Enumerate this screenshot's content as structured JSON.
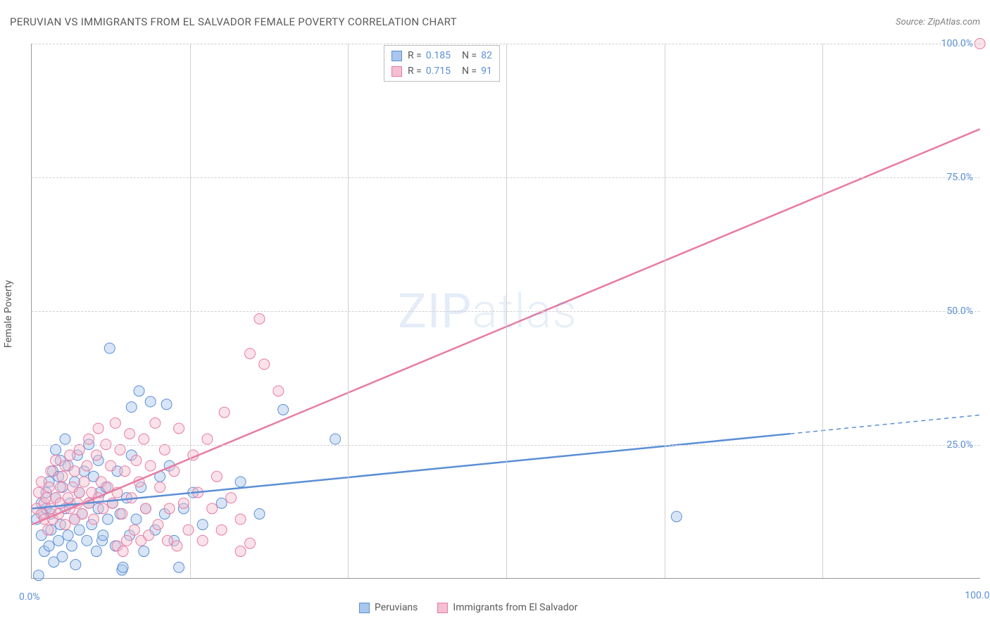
{
  "title": "PERUVIAN VS IMMIGRANTS FROM EL SALVADOR FEMALE POVERTY CORRELATION CHART",
  "source_label": "Source: ",
  "source_value": "ZipAtlas.com",
  "ylabel": "Female Poverty",
  "watermark_main": "ZIP",
  "watermark_sub": "atlas",
  "chart": {
    "type": "scatter",
    "xlim": [
      0,
      100
    ],
    "ylim": [
      0,
      100
    ],
    "xticks": [
      0,
      100
    ],
    "yticks": [
      0,
      25,
      50,
      75,
      100
    ],
    "xtick_labels": [
      "0.0%",
      "100.0%"
    ],
    "ytick_labels": [
      "0.0%",
      "25.0%",
      "50.0%",
      "75.0%",
      "100.0%"
    ],
    "vgrid_at": [
      16.67,
      33.33,
      50,
      66.67,
      83.33
    ],
    "background_color": "#ffffff",
    "grid_color": "#d0d0d0",
    "axis_color": "#999999",
    "marker_radius": 7.5,
    "marker_opacity": 0.45,
    "series": [
      {
        "name": "Peruvians",
        "color_fill": "#a9c6ec",
        "color_stroke": "#5b8fd6",
        "r": "0.185",
        "n": "82",
        "regression": {
          "x1": 0,
          "y1": 13,
          "x2": 80,
          "y2": 27,
          "extrap_x2": 100,
          "extrap_y2": 30.5
        },
        "points": [
          [
            0.5,
            11
          ],
          [
            0.7,
            0.5
          ],
          [
            1,
            14
          ],
          [
            1,
            8
          ],
          [
            1.2,
            12
          ],
          [
            1.3,
            5
          ],
          [
            1.5,
            13
          ],
          [
            1.5,
            16
          ],
          [
            1.8,
            6
          ],
          [
            1.8,
            18
          ],
          [
            2,
            12
          ],
          [
            2,
            9
          ],
          [
            2.2,
            20
          ],
          [
            2.3,
            3
          ],
          [
            2.5,
            15
          ],
          [
            2.5,
            24
          ],
          [
            2.8,
            7
          ],
          [
            2.8,
            19
          ],
          [
            3,
            10
          ],
          [
            3,
            22
          ],
          [
            3.2,
            4
          ],
          [
            3.2,
            17
          ],
          [
            3.5,
            13
          ],
          [
            3.5,
            26
          ],
          [
            3.8,
            8
          ],
          [
            3.8,
            21
          ],
          [
            4,
            14
          ],
          [
            4.2,
            6
          ],
          [
            4.5,
            18
          ],
          [
            4.5,
            11
          ],
          [
            4.6,
            2.5
          ],
          [
            4.8,
            23
          ],
          [
            5,
            9
          ],
          [
            5,
            16
          ],
          [
            5.3,
            12
          ],
          [
            5.5,
            20
          ],
          [
            5.8,
            7
          ],
          [
            6,
            14
          ],
          [
            6,
            25
          ],
          [
            6.3,
            10
          ],
          [
            6.5,
            19
          ],
          [
            6.8,
            5
          ],
          [
            7,
            13
          ],
          [
            7,
            22
          ],
          [
            7.2,
            16
          ],
          [
            7.4,
            7
          ],
          [
            7.5,
            8
          ],
          [
            7.8,
            17
          ],
          [
            8,
            11
          ],
          [
            8.2,
            43
          ],
          [
            8.5,
            14
          ],
          [
            8.8,
            6
          ],
          [
            9,
            20
          ],
          [
            9.3,
            12
          ],
          [
            9.5,
            1.5
          ],
          [
            9.6,
            2
          ],
          [
            10,
            15
          ],
          [
            10.3,
            8
          ],
          [
            10.5,
            23
          ],
          [
            10.5,
            32
          ],
          [
            11,
            11
          ],
          [
            11.3,
            35
          ],
          [
            11.5,
            17
          ],
          [
            11.8,
            5
          ],
          [
            12,
            13
          ],
          [
            12.5,
            33
          ],
          [
            13,
            9
          ],
          [
            13.5,
            19
          ],
          [
            14,
            12
          ],
          [
            14.2,
            32.5
          ],
          [
            14.5,
            21
          ],
          [
            15,
            7
          ],
          [
            15.5,
            2
          ],
          [
            16,
            13
          ],
          [
            17,
            16
          ],
          [
            18,
            10
          ],
          [
            20,
            14
          ],
          [
            22,
            18
          ],
          [
            24,
            12
          ],
          [
            26.5,
            31.5
          ],
          [
            32,
            26
          ],
          [
            68,
            11.5
          ]
        ]
      },
      {
        "name": "Immigrants from El Salvador",
        "color_fill": "#f4bfce",
        "color_stroke": "#e87ba2",
        "r": "0.715",
        "n": "91",
        "regression": {
          "x1": 0,
          "y1": 10,
          "x2": 100,
          "y2": 84
        },
        "points": [
          [
            0.5,
            13
          ],
          [
            0.7,
            16
          ],
          [
            1,
            12
          ],
          [
            1,
            18
          ],
          [
            1.3,
            14
          ],
          [
            1.3,
            11
          ],
          [
            1.5,
            15
          ],
          [
            1.7,
            9
          ],
          [
            1.8,
            17
          ],
          [
            2,
            13
          ],
          [
            2,
            20
          ],
          [
            2.2,
            11
          ],
          [
            2.5,
            15
          ],
          [
            2.5,
            22
          ],
          [
            2.8,
            12
          ],
          [
            3,
            17
          ],
          [
            3,
            14
          ],
          [
            3.2,
            19
          ],
          [
            3.5,
            10
          ],
          [
            3.5,
            21
          ],
          [
            3.8,
            15
          ],
          [
            4,
            13
          ],
          [
            4,
            23
          ],
          [
            4.3,
            17
          ],
          [
            4.5,
            11
          ],
          [
            4.5,
            20
          ],
          [
            4.8,
            14
          ],
          [
            5,
            16
          ],
          [
            5,
            24
          ],
          [
            5.3,
            12
          ],
          [
            5.5,
            18
          ],
          [
            5.8,
            21
          ],
          [
            6,
            14
          ],
          [
            6,
            26
          ],
          [
            6.3,
            16
          ],
          [
            6.5,
            11
          ],
          [
            6.8,
            23
          ],
          [
            7,
            15
          ],
          [
            7,
            28
          ],
          [
            7.3,
            18
          ],
          [
            7.5,
            13
          ],
          [
            7.8,
            25
          ],
          [
            8,
            17
          ],
          [
            8.3,
            21
          ],
          [
            8.5,
            14
          ],
          [
            8.8,
            29
          ],
          [
            9,
            16
          ],
          [
            9,
            6
          ],
          [
            9.3,
            24
          ],
          [
            9.5,
            12
          ],
          [
            9.6,
            5
          ],
          [
            9.8,
            20
          ],
          [
            10,
            7
          ],
          [
            10.3,
            27
          ],
          [
            10.5,
            15
          ],
          [
            10.8,
            9
          ],
          [
            11,
            22
          ],
          [
            11.3,
            18
          ],
          [
            11.5,
            7
          ],
          [
            11.8,
            26
          ],
          [
            12,
            13
          ],
          [
            12.3,
            8
          ],
          [
            12.5,
            21
          ],
          [
            13,
            29
          ],
          [
            13.3,
            10
          ],
          [
            13.5,
            17
          ],
          [
            14,
            24
          ],
          [
            14.3,
            7
          ],
          [
            14.5,
            13
          ],
          [
            15,
            20
          ],
          [
            15.3,
            6
          ],
          [
            15.5,
            28
          ],
          [
            16,
            14
          ],
          [
            16.5,
            9
          ],
          [
            17,
            23
          ],
          [
            17.5,
            16
          ],
          [
            18,
            7
          ],
          [
            18.5,
            26
          ],
          [
            19,
            13
          ],
          [
            19.5,
            19
          ],
          [
            20,
            9
          ],
          [
            20.3,
            31
          ],
          [
            21,
            15
          ],
          [
            22,
            11
          ],
          [
            22,
            5
          ],
          [
            23,
            42
          ],
          [
            23,
            6.5
          ],
          [
            24,
            48.5
          ],
          [
            24.5,
            40
          ],
          [
            26,
            35
          ],
          [
            100,
            100
          ]
        ]
      }
    ],
    "legend_bottom": [
      {
        "label": "Peruvians",
        "series_index": 0
      },
      {
        "label": "Immigrants from El Salvador",
        "series_index": 1
      }
    ]
  }
}
